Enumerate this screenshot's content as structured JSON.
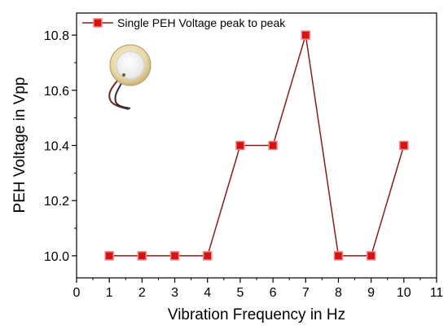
{
  "chart_data": {
    "type": "line",
    "title": "",
    "xlabel": "Vibration Frequency in Hz",
    "ylabel": "PEH Voltage in Vpp",
    "xlim": [
      0,
      11
    ],
    "ylim": [
      9.92,
      10.88
    ],
    "xticks": [
      0,
      1,
      2,
      3,
      4,
      5,
      6,
      7,
      8,
      9,
      10,
      11
    ],
    "yticks": [
      10.0,
      10.2,
      10.4,
      10.6,
      10.8
    ],
    "ytick_labels": [
      "10.0",
      "10.2",
      "10.4",
      "10.6",
      "10.8"
    ],
    "grid": false,
    "legend_position": "top-left",
    "series": [
      {
        "name": "Single PEH Voltage peak to peak",
        "x": [
          1,
          2,
          3,
          4,
          5,
          6,
          7,
          8,
          9,
          10
        ],
        "y": [
          10.0,
          10.0,
          10.0,
          10.0,
          10.4,
          10.4,
          10.8,
          10.0,
          10.0,
          10.4
        ],
        "line_color": "#8b1a1a",
        "marker": "square",
        "marker_color": "#d21414",
        "marker_edge_color": "#ff8080"
      }
    ]
  },
  "inset_image": "piezo-disc-with-wires"
}
